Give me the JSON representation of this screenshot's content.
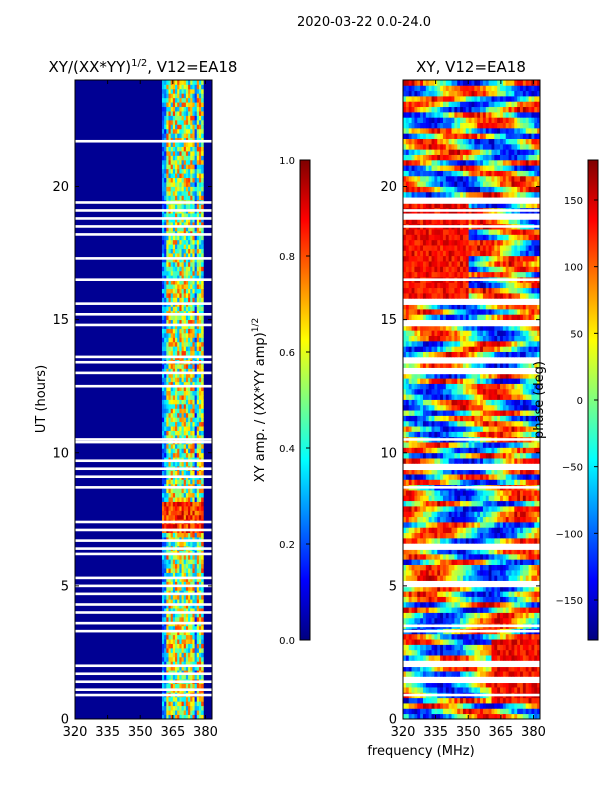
{
  "suptitle": "2020-03-22 0.0-24.0",
  "colors": {
    "jet": [
      "#00007f",
      "#0000ff",
      "#007fff",
      "#00ffff",
      "#7fff7f",
      "#ffff00",
      "#ff7f00",
      "#ff0000",
      "#7f0000"
    ],
    "gap": "#ffffff"
  },
  "chart_data": [
    {
      "type": "heatmap",
      "title_main": "XY/(XX*YY)",
      "title_exp": "1/2",
      "title_tail": ", V12=EA18",
      "xlabel": "",
      "ylabel": "UT (hours)",
      "xlim": [
        320,
        383
      ],
      "ylim": [
        0,
        24
      ],
      "xticks": [
        320,
        335,
        350,
        365,
        380
      ],
      "xtick_labels": [
        "320",
        "335",
        "350",
        "365",
        "380"
      ],
      "yticks": [
        0,
        5,
        10,
        15,
        20
      ],
      "ytick_labels": [
        "0",
        "5",
        "10",
        "15",
        "20"
      ],
      "colorbar": {
        "label_main": "XY amp. / (XX*YY amp)",
        "label_exp": "1/2",
        "vmin": 0,
        "vmax": 1,
        "ticks": [
          0,
          0.2,
          0.4,
          0.6,
          0.8,
          1.0
        ],
        "tick_labels": [
          "0.0",
          "0.2",
          "0.4",
          "0.6",
          "0.8",
          "1.0"
        ]
      },
      "features": {
        "background_value": 0.02,
        "active_band_MHz": [
          360,
          379
        ],
        "strong_channels_MHz": [
          363,
          366,
          368,
          371,
          373,
          377
        ],
        "high_amplitude_time_range_hours": [
          6.9,
          8.1
        ],
        "flagged_times_hours": [
          0.9,
          1.1,
          1.4,
          1.7,
          2.0,
          3.3,
          3.6,
          4.0,
          4.3,
          4.7,
          5.0,
          5.3,
          6.2,
          6.4,
          6.7,
          7.1,
          7.4,
          8.7,
          9.1,
          9.4,
          9.7,
          10.4,
          10.5,
          12.5,
          13.0,
          13.4,
          13.6,
          14.8,
          15.2,
          15.6,
          16.5,
          17.3,
          18.2,
          18.5,
          18.8,
          19.1,
          19.4,
          21.7
        ]
      }
    },
    {
      "type": "heatmap",
      "title": "XY, V12=EA18",
      "xlabel": "frequency (MHz)",
      "ylabel": "",
      "xlim": [
        320,
        383
      ],
      "ylim": [
        0,
        24
      ],
      "xticks": [
        320,
        335,
        350,
        365,
        380
      ],
      "xtick_labels": [
        "320",
        "335",
        "350",
        "365",
        "380"
      ],
      "yticks": [
        0,
        5,
        10,
        15,
        20
      ],
      "ytick_labels": [
        "0",
        "5",
        "10",
        "15",
        "20"
      ],
      "colorbar": {
        "label": "phase (deg)",
        "vmin": -180,
        "vmax": 180,
        "ticks": [
          -150,
          -100,
          -50,
          0,
          50,
          100,
          150
        ],
        "tick_labels": [
          "−150",
          "−100",
          "−50",
          "0",
          "50",
          "100",
          "150"
        ]
      },
      "features": {
        "flagged_times_hours": [
          0.9,
          1.4,
          2.0,
          3.3,
          3.5,
          5.0,
          6.4,
          8.7,
          9.4,
          10.5,
          13.0,
          13.4,
          14.8,
          15.6,
          16.5,
          18.5,
          18.8,
          19.1,
          19.4
        ]
      }
    }
  ]
}
